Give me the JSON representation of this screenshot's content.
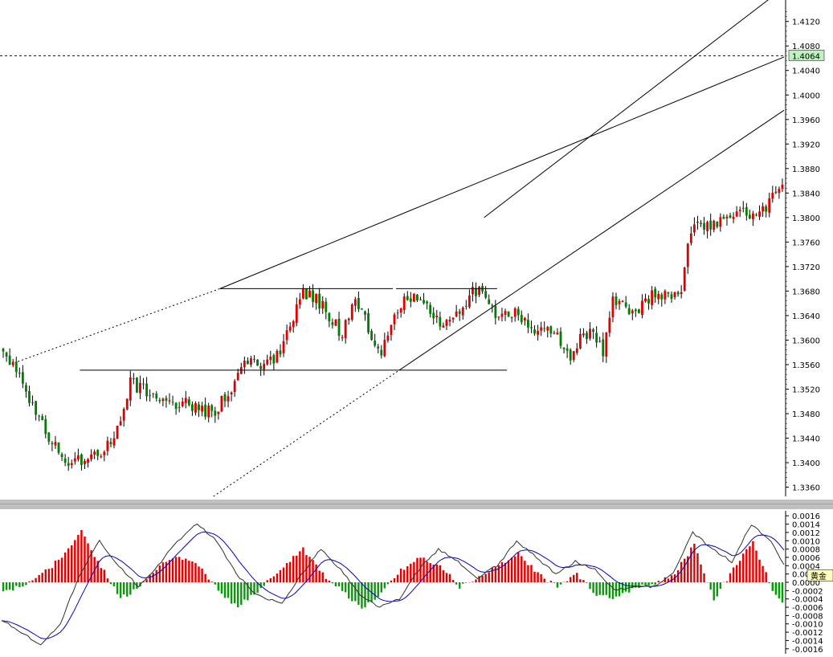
{
  "colors": {
    "background": "#ffffff",
    "bull": "#e00000",
    "bear": "#008000",
    "wick": "#000000",
    "trendline": "#000000",
    "current_price_line": "#000080",
    "price_tag_bg": "#c0f0c0",
    "macd_pos": "#e00000",
    "macd_neg": "#00a000",
    "macd_line": "#303030",
    "signal_line": "#0000c0",
    "separator": "#c0c0c0",
    "label_bg": "#ffffc0"
  },
  "chart_data": [
    {
      "type": "candlestick",
      "panel": "price",
      "ylim": [
        1.3345,
        1.4155
      ],
      "y_ticks": [
        "1.4120",
        "1.4080",
        "1.4040",
        "1.4000",
        "1.3960",
        "1.3920",
        "1.3880",
        "1.3840",
        "1.3800",
        "1.3760",
        "1.3720",
        "1.3680",
        "1.3640",
        "1.3600",
        "1.3560",
        "1.3520",
        "1.3480",
        "1.3440",
        "1.3400",
        "1.3360"
      ],
      "current_price": "1.4064",
      "current_price_value": 1.4064,
      "bar_count": 240,
      "anchors": [
        [
          0,
          1.3585
        ],
        [
          5,
          1.355
        ],
        [
          10,
          1.3495
        ],
        [
          15,
          1.344
        ],
        [
          20,
          1.3405
        ],
        [
          25,
          1.3405
        ],
        [
          30,
          1.341
        ],
        [
          35,
          1.344
        ],
        [
          40,
          1.353
        ],
        [
          45,
          1.3515
        ],
        [
          50,
          1.3505
        ],
        [
          55,
          1.3495
        ],
        [
          60,
          1.3495
        ],
        [
          65,
          1.348
        ],
        [
          70,
          1.351
        ],
        [
          75,
          1.357
        ],
        [
          80,
          1.356
        ],
        [
          85,
          1.3572
        ],
        [
          90,
          1.364
        ],
        [
          93,
          1.368
        ],
        [
          97,
          1.367
        ],
        [
          101,
          1.364
        ],
        [
          105,
          1.361
        ],
        [
          109,
          1.367
        ],
        [
          113,
          1.362
        ],
        [
          117,
          1.3575
        ],
        [
          121,
          1.364
        ],
        [
          125,
          1.367
        ],
        [
          130,
          1.3665
        ],
        [
          135,
          1.362
        ],
        [
          140,
          1.364
        ],
        [
          144,
          1.3675
        ],
        [
          148,
          1.369
        ],
        [
          152,
          1.364
        ],
        [
          156,
          1.3645
        ],
        [
          160,
          1.364
        ],
        [
          164,
          1.362
        ],
        [
          168,
          1.3615
        ],
        [
          172,
          1.36
        ],
        [
          175,
          1.3565
        ],
        [
          178,
          1.361
        ],
        [
          182,
          1.361
        ],
        [
          185,
          1.358
        ],
        [
          188,
          1.3665
        ],
        [
          193,
          1.3645
        ],
        [
          197,
          1.3655
        ],
        [
          201,
          1.368
        ],
        [
          205,
          1.367
        ],
        [
          209,
          1.368
        ],
        [
          212,
          1.378
        ],
        [
          217,
          1.379
        ],
        [
          221,
          1.3795
        ],
        [
          225,
          1.38
        ],
        [
          229,
          1.381
        ],
        [
          233,
          1.38
        ],
        [
          237,
          1.384
        ],
        [
          240,
          1.385
        ]
      ],
      "h_levels": [
        {
          "value": 1.3684,
          "from": 67,
          "to": 120
        },
        {
          "value": 1.3684,
          "from": 121,
          "to": 152
        },
        {
          "value": 1.3551,
          "from": 24,
          "to": 155
        }
      ],
      "trendlines": [
        {
          "from": [
            67,
            1.3684
          ],
          "to": [
            240,
            1.4062
          ],
          "style": "solid"
        },
        {
          "from": [
            5,
            1.3565
          ],
          "to": [
            67,
            1.3684
          ],
          "style": "dashed"
        },
        {
          "from": [
            122,
            1.3551
          ],
          "to": [
            240,
            1.3975
          ],
          "style": "solid"
        },
        {
          "from": [
            65,
            1.3345
          ],
          "to": [
            122,
            1.3551
          ],
          "style": "dashed"
        },
        {
          "from": [
            148,
            1.38
          ],
          "to": [
            240,
            1.4175
          ],
          "style": "solid"
        }
      ]
    },
    {
      "type": "histogram",
      "panel": "macd",
      "ylim": [
        -0.00172,
        0.00172
      ],
      "y_ticks": [
        "0.0016",
        "0.0014",
        "0.0012",
        "0.0010",
        "0.0008",
        "0.0006",
        "0.0004",
        "0.0002",
        "0.0000",
        "-0.0002",
        "-0.0004",
        "-0.0006",
        "-0.0008",
        "-0.0010",
        "-0.0012",
        "-0.0014",
        "-0.0016"
      ],
      "overlay_label": "黄金",
      "macd_anchors": [
        [
          0,
          -0.0009
        ],
        [
          6,
          -0.0012
        ],
        [
          12,
          -0.0015
        ],
        [
          18,
          -0.001
        ],
        [
          24,
          0.0002
        ],
        [
          30,
          0.001
        ],
        [
          36,
          0.0004
        ],
        [
          42,
          -0.0001
        ],
        [
          48,
          0.0004
        ],
        [
          54,
          0.001
        ],
        [
          60,
          0.0014
        ],
        [
          66,
          0.001
        ],
        [
          72,
          0.0002
        ],
        [
          78,
          -0.0003
        ],
        [
          86,
          -0.0005
        ],
        [
          92,
          0.0002
        ],
        [
          98,
          0.0008
        ],
        [
          104,
          0.0003
        ],
        [
          110,
          -0.0003
        ],
        [
          116,
          -0.0006
        ],
        [
          122,
          -0.0004
        ],
        [
          128,
          0.0003
        ],
        [
          134,
          0.0008
        ],
        [
          140,
          0.0005
        ],
        [
          146,
          0.0001
        ],
        [
          152,
          0.0004
        ],
        [
          158,
          0.001
        ],
        [
          164,
          0.0006
        ],
        [
          170,
          0.0002
        ],
        [
          176,
          0.0005
        ],
        [
          182,
          0.0003
        ],
        [
          188,
          -0.0002
        ],
        [
          194,
          -0.0001
        ],
        [
          200,
          -0.0001
        ],
        [
          206,
          0.0002
        ],
        [
          212,
          0.0012
        ],
        [
          218,
          0.0008
        ],
        [
          224,
          0.0005
        ],
        [
          230,
          0.0014
        ],
        [
          236,
          0.001
        ],
        [
          240,
          0.0004
        ]
      ],
      "hist_anchors": [
        [
          0,
          -0.0002
        ],
        [
          6,
          -0.0001
        ],
        [
          12,
          0.0002
        ],
        [
          18,
          0.0006
        ],
        [
          24,
          0.0012
        ],
        [
          30,
          0.0004
        ],
        [
          36,
          -0.0004
        ],
        [
          42,
          -0.0001
        ],
        [
          48,
          0.0004
        ],
        [
          54,
          0.0006
        ],
        [
          60,
          0.0004
        ],
        [
          66,
          -0.0002
        ],
        [
          72,
          -0.0006
        ],
        [
          78,
          -0.0002
        ],
        [
          86,
          0.0004
        ],
        [
          92,
          0.0008
        ],
        [
          98,
          0.0002
        ],
        [
          104,
          -0.0002
        ],
        [
          110,
          -0.0006
        ],
        [
          116,
          -0.0003
        ],
        [
          122,
          0.0003
        ],
        [
          128,
          0.0006
        ],
        [
          134,
          0.0004
        ],
        [
          140,
          -0.0001
        ],
        [
          146,
          0.0001
        ],
        [
          152,
          0.0004
        ],
        [
          158,
          0.0007
        ],
        [
          164,
          0.0002
        ],
        [
          170,
          -0.0001
        ],
        [
          176,
          0.0002
        ],
        [
          182,
          -0.0003
        ],
        [
          188,
          -0.0004
        ],
        [
          194,
          -0.0001
        ],
        [
          200,
          0.0
        ],
        [
          206,
          0.0002
        ],
        [
          212,
          0.0009
        ],
        [
          218,
          -0.0004
        ],
        [
          224,
          0.0003
        ],
        [
          230,
          0.001
        ],
        [
          236,
          -0.0002
        ],
        [
          240,
          -0.0006
        ]
      ]
    }
  ]
}
